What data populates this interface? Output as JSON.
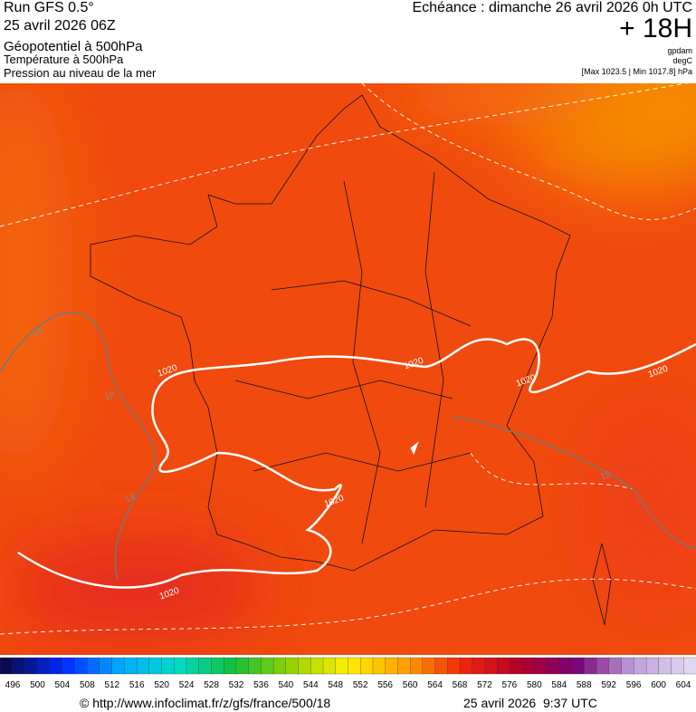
{
  "header": {
    "run": "Run GFS 0.5°",
    "run_date": "25 avril 2026 06Z",
    "field1": "Géopotentiel à 500hPa",
    "field2": "Température à 500hPa",
    "field3": "Pression au niveau de la mer",
    "valid": "Echéance : dimanche 26 avril 2026 0h UTC",
    "lead": "+ 18H",
    "unit1": "gpdam",
    "unit2": "degC",
    "range": "[Max 1023.5 | Min 1017.8] hPa"
  },
  "map": {
    "contour_labels": [
      "1020",
      "1020",
      "1020",
      "1020",
      "1020",
      "1020",
      "18",
      "18",
      "18",
      "18"
    ]
  },
  "color_scale": {
    "labels": [
      496,
      500,
      504,
      508,
      512,
      516,
      520,
      524,
      528,
      532,
      536,
      540,
      544,
      548,
      552,
      556,
      560,
      564,
      568,
      572,
      576,
      580,
      584,
      588,
      592,
      596,
      600,
      604
    ]
  },
  "footer": {
    "url": "© http://www.infoclimat.fr/z/gfs/france/500/18",
    "timestamp": "25 avril 2026  9:37 UTC"
  }
}
